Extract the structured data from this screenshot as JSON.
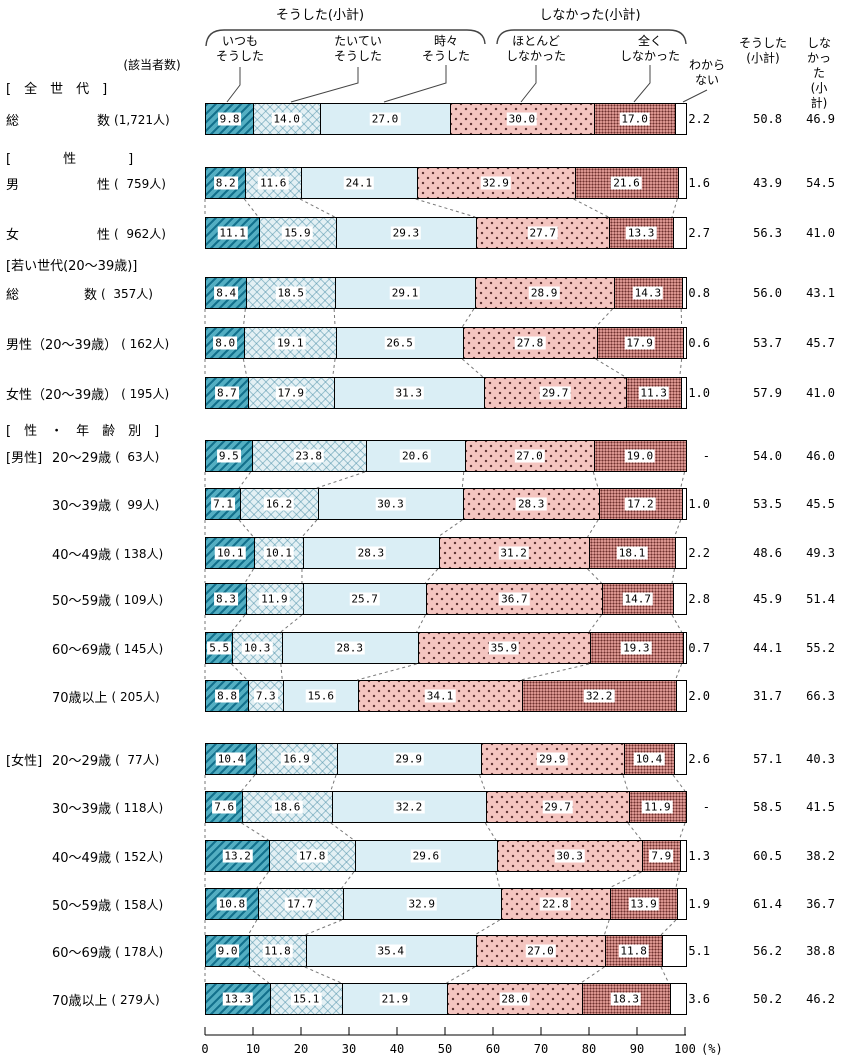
{
  "header": {
    "did_group_title": "そうした(小計)",
    "didnt_group_title": "しなかった(小計)",
    "respondents_label": "(該当者数)",
    "dk_header": "わから\nない",
    "did_col_header": "そうした\n(小計)",
    "didnt_col_header": "しなかった\n(小計)",
    "legend": [
      "いつも\nそうした",
      "たいてい\nそうした",
      "時々\nそうした",
      "ほとんど\nしなかった",
      "全く\nしなかった"
    ]
  },
  "colors": {
    "seg1": "#53aec2",
    "seg1_stripe": "#13718d",
    "seg2": "#e3f0f4",
    "seg3": "#daeef5",
    "seg4": "#f4c5c0",
    "seg5": "#dd9792",
    "dk": "#ffffff"
  },
  "chart_data": {
    "type": "bar",
    "subtype": "horizontal-stacked-percentage",
    "segments": [
      "いつもそうした",
      "たいていそうした",
      "時々そうした",
      "ほとんどしなかった",
      "全くしなかった",
      "わからない"
    ],
    "axis": {
      "min": 0,
      "max": 100,
      "ticks": [
        0,
        10,
        20,
        30,
        40,
        50,
        60,
        70,
        80,
        90,
        100
      ],
      "unit": "(%)"
    },
    "rows": [
      {
        "type": "section",
        "label": "[　全　世　代　]"
      },
      {
        "type": "bar",
        "name": "総　　　　　　数",
        "count": "(1,721人)",
        "cluster": null,
        "values": [
          9.8,
          14.0,
          27.0,
          30.0,
          17.0
        ],
        "dk": "2.2",
        "did": "50.8",
        "didnt": "46.9"
      },
      {
        "type": "section",
        "label": "[　　　　性　　　　]"
      },
      {
        "type": "bar",
        "name": "男　　　　　　性",
        "count": "(  759人)",
        "cluster": "sex",
        "values": [
          8.2,
          11.6,
          24.1,
          32.9,
          21.6
        ],
        "dk": "1.6",
        "did": "43.9",
        "didnt": "54.5"
      },
      {
        "type": "bar",
        "name": "女　　　　　　性",
        "count": "(  962人)",
        "cluster": "sex",
        "values": [
          11.1,
          15.9,
          29.3,
          27.7,
          13.3
        ],
        "dk": "2.7",
        "did": "56.3",
        "didnt": "41.0"
      },
      {
        "type": "section",
        "label": "[若い世代(20〜39歳)]"
      },
      {
        "type": "bar",
        "name": "総　　　　　数",
        "count": "(  357人)",
        "cluster": "young",
        "values": [
          8.4,
          18.5,
          29.1,
          28.9,
          14.3
        ],
        "dk": "0.8",
        "did": "56.0",
        "didnt": "43.1"
      },
      {
        "type": "bar",
        "name": "男性（20〜39歳）",
        "count": "( 162人)",
        "cluster": "young",
        "values": [
          8.0,
          19.1,
          26.5,
          27.8,
          17.9
        ],
        "dk": "0.6",
        "did": "53.7",
        "didnt": "45.7"
      },
      {
        "type": "bar",
        "name": "女性（20〜39歳）",
        "count": "( 195人)",
        "cluster": "young",
        "values": [
          8.7,
          17.9,
          31.3,
          29.7,
          11.3
        ],
        "dk": "1.0",
        "did": "57.9",
        "didnt": "41.0"
      },
      {
        "type": "section",
        "label": "[　性　・　年　齢　別　]"
      },
      {
        "type": "bar",
        "prefix": "[男性]",
        "name": "20〜29歳",
        "count": "(  63人)",
        "cluster": "m",
        "values": [
          9.5,
          23.8,
          20.6,
          27.0,
          19.0
        ],
        "dk": "-",
        "did": "54.0",
        "didnt": "46.0"
      },
      {
        "type": "bar",
        "prefix": "",
        "name": "30〜39歳",
        "count": "(  99人)",
        "cluster": "m",
        "values": [
          7.1,
          16.2,
          30.3,
          28.3,
          17.2
        ],
        "dk": "1.0",
        "did": "53.5",
        "didnt": "45.5"
      },
      {
        "type": "bar",
        "prefix": "",
        "name": "40〜49歳",
        "count": "( 138人)",
        "cluster": "m",
        "values": [
          10.1,
          10.1,
          28.3,
          31.2,
          18.1
        ],
        "dk": "2.2",
        "did": "48.6",
        "didnt": "49.3"
      },
      {
        "type": "bar",
        "prefix": "",
        "name": "50〜59歳",
        "count": "( 109人)",
        "cluster": "m",
        "values": [
          8.3,
          11.9,
          25.7,
          36.7,
          14.7
        ],
        "dk": "2.8",
        "did": "45.9",
        "didnt": "51.4"
      },
      {
        "type": "bar",
        "prefix": "",
        "name": "60〜69歳",
        "count": "( 145人)",
        "cluster": "m",
        "values": [
          5.5,
          10.3,
          28.3,
          35.9,
          19.3
        ],
        "dk": "0.7",
        "did": "44.1",
        "didnt": "55.2"
      },
      {
        "type": "bar",
        "prefix": "",
        "name": "70歳以上",
        "count": "( 205人)",
        "cluster": "m",
        "values": [
          8.8,
          7.3,
          15.6,
          34.1,
          32.2
        ],
        "dk": "2.0",
        "did": "31.7",
        "didnt": "66.3"
      },
      {
        "type": "bar",
        "prefix": "[女性]",
        "name": "20〜29歳",
        "count": "(  77人)",
        "cluster": "f",
        "values": [
          10.4,
          16.9,
          29.9,
          29.9,
          10.4
        ],
        "dk": "2.6",
        "did": "57.1",
        "didnt": "40.3"
      },
      {
        "type": "bar",
        "prefix": "",
        "name": "30〜39歳",
        "count": "( 118人)",
        "cluster": "f",
        "values": [
          7.6,
          18.6,
          32.2,
          29.7,
          11.9
        ],
        "dk": "-",
        "did": "58.5",
        "didnt": "41.5"
      },
      {
        "type": "bar",
        "prefix": "",
        "name": "40〜49歳",
        "count": "( 152人)",
        "cluster": "f",
        "values": [
          13.2,
          17.8,
          29.6,
          30.3,
          7.9
        ],
        "dk": "1.3",
        "did": "60.5",
        "didnt": "38.2"
      },
      {
        "type": "bar",
        "prefix": "",
        "name": "50〜59歳",
        "count": "( 158人)",
        "cluster": "f",
        "values": [
          10.8,
          17.7,
          32.9,
          22.8,
          13.9
        ],
        "dk": "1.9",
        "did": "61.4",
        "didnt": "36.7"
      },
      {
        "type": "bar",
        "prefix": "",
        "name": "60〜69歳",
        "count": "( 178人)",
        "cluster": "f",
        "values": [
          9.0,
          11.8,
          35.4,
          27.0,
          11.8
        ],
        "dk": "5.1",
        "did": "56.2",
        "didnt": "38.8"
      },
      {
        "type": "bar",
        "prefix": "",
        "name": "70歳以上",
        "count": "( 279人)",
        "cluster": "f",
        "values": [
          13.3,
          15.1,
          21.9,
          28.0,
          18.3
        ],
        "dk": "3.6",
        "did": "50.2",
        "didnt": "46.2"
      }
    ]
  }
}
